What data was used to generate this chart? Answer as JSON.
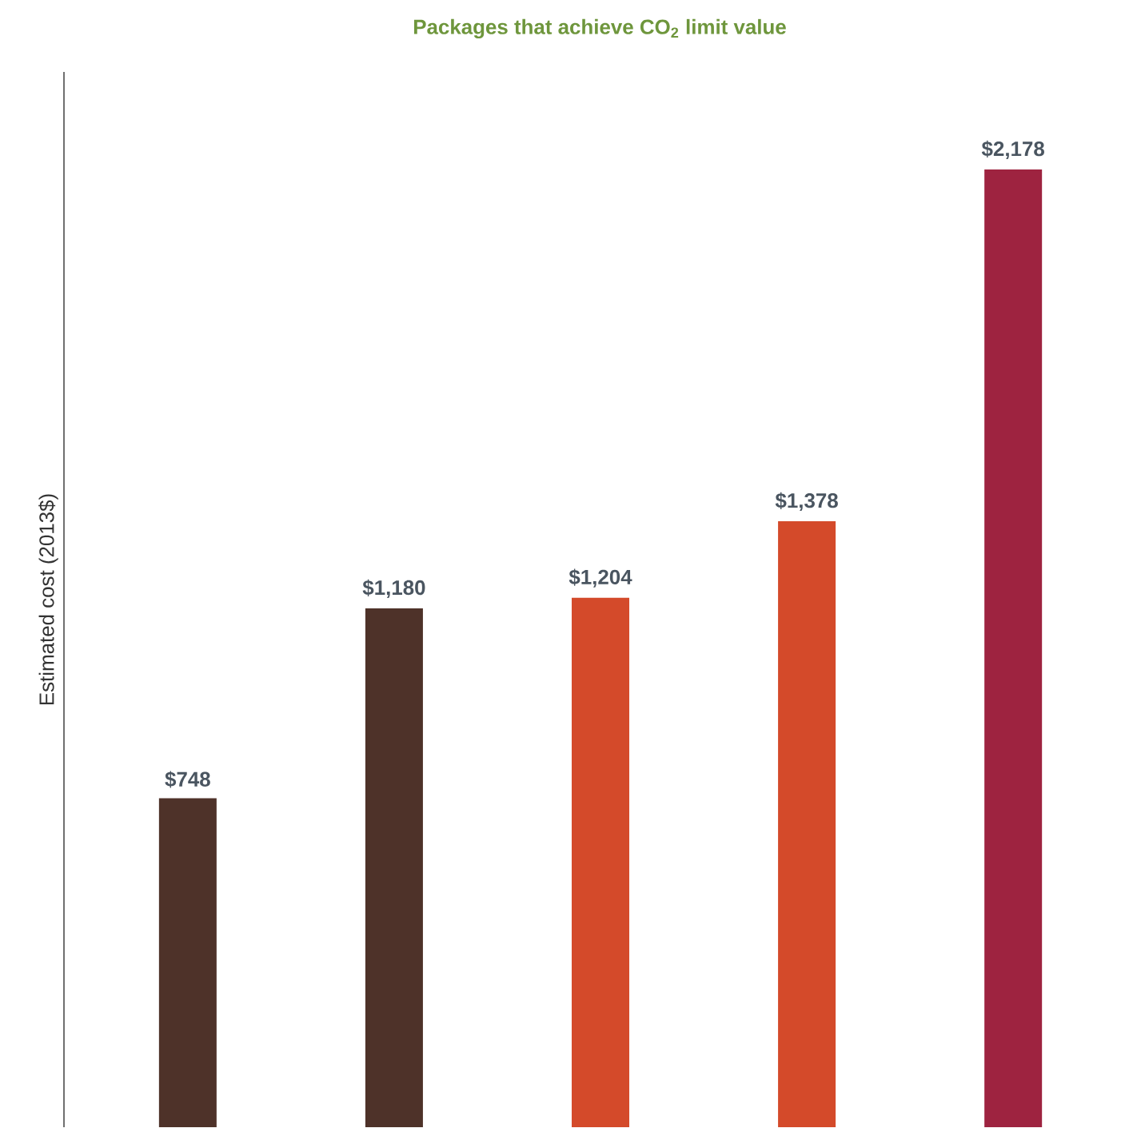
{
  "chart_data": {
    "type": "bar",
    "annotations": [
      "Packages that achieve CO$_{2}$ limit value"
    ],
    "ylabel": "Estimated cost (2013$)",
    "categories": [
      null,
      null,
      null,
      null,
      null
    ],
    "values": [
      748,
      1180,
      1204,
      1378,
      2178
    ],
    "colors": [
      "#4e3229",
      "#4e3229",
      "#d44a2a",
      "#d44a2a",
      "#9e2340"
    ],
    "value_labels": [
      "$748",
      "$1,180",
      "$1,204",
      "$1,378",
      "$2,178"
    ],
    "ylim": [
      0,
      2400
    ]
  }
}
